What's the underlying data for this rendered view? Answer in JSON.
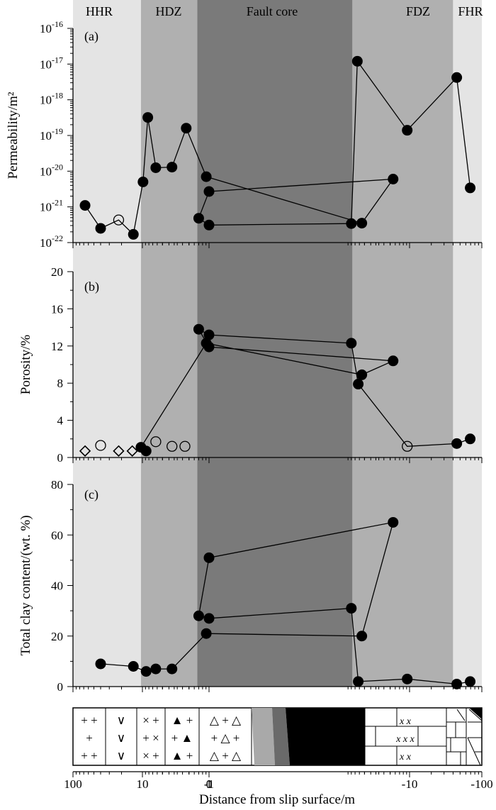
{
  "zones": [
    {
      "name": "HHR",
      "from": 100,
      "to": 10.5,
      "color": "#e4e4e4"
    },
    {
      "name": "HDZ",
      "from": 10.5,
      "to": 1.5,
      "color": "#b0b0b0"
    },
    {
      "name": "Fault core",
      "from": 1.5,
      "to": -1.3,
      "color": "#7a7a7a"
    },
    {
      "name": "FDZ",
      "from": -1.3,
      "to": -40,
      "color": "#b0b0b0"
    },
    {
      "name": "FHR",
      "from": -40,
      "to": -100,
      "color": "#e4e4e4"
    }
  ],
  "chart_data": [
    {
      "type": "scatter",
      "panel": "(a)",
      "ylabel": "Permeability/m²",
      "yscale": "log",
      "ylim": [
        -22,
        -16
      ],
      "ytick_labels": [
        {
          "base": "10",
          "exp": "-16"
        },
        {
          "base": "10",
          "exp": "-17"
        },
        {
          "base": "10",
          "exp": "-18"
        },
        {
          "base": "10",
          "exp": "-19"
        },
        {
          "base": "10",
          "exp": "-20"
        },
        {
          "base": "10",
          "exp": "-21"
        },
        {
          "base": "10",
          "exp": "-22"
        }
      ],
      "series": [
        {
          "name": "filled",
          "connected": true,
          "points": [
            {
              "x": 67,
              "y": 1.1e-21
            },
            {
              "x": 40,
              "y": 2.5e-22
            },
            {
              "x": 22,
              "y": 4.3e-22,
              "open": true
            },
            {
              "x": 13.5,
              "y": 1.7e-22
            },
            {
              "x": 9.8,
              "y": 5e-21
            },
            {
              "x": 8.3,
              "y": 3.2e-19
            },
            {
              "x": 6.3,
              "y": 1.25e-20
            },
            {
              "x": 3.6,
              "y": 1.3e-20
            },
            {
              "x": 2.2,
              "y": 1.6e-19
            },
            {
              "x": 1.1,
              "y": 7e-21
            },
            {
              "x": 0.55,
              "y": 3.5e-22
            },
            {
              "x": 0.18,
              "y": 6e-21
            },
            {
              "x": 0.0,
              "y": 2.7e-21
            },
            {
              "x": -0.7,
              "y": 4.8e-22
            },
            {
              "x": -1.0,
              "y": 3.1e-22
            },
            {
              "x": -1.25,
              "y": 3.4e-22
            },
            {
              "x": -1.55,
              "y": 1.2e-17
            },
            {
              "x": -9.2,
              "y": 1.4e-19
            },
            {
              "x": -45,
              "y": 4.2e-18
            },
            {
              "x": -69,
              "y": 3.4e-21
            }
          ]
        }
      ]
    },
    {
      "type": "scatter",
      "panel": "(b)",
      "ylabel": "Porosity/%",
      "ylim": [
        0,
        20
      ],
      "yticks": [
        0,
        4,
        8,
        12,
        16,
        20
      ],
      "series": [
        {
          "name": "filled",
          "connected": true,
          "points": [
            {
              "x": 10.5,
              "y": 1.1
            },
            {
              "x": 1.1,
              "y": 12.3
            },
            {
              "x": 0.55,
              "y": 8.9
            },
            {
              "x": 0.18,
              "y": 10.4
            },
            {
              "x": 0.0,
              "y": 11.9
            },
            {
              "x": -0.7,
              "y": 13.8
            },
            {
              "x": -1.0,
              "y": 13.2
            },
            {
              "x": -1.25,
              "y": 12.3
            },
            {
              "x": -1.6,
              "y": 7.9
            },
            {
              "x": -9.2,
              "y": 1.2,
              "open": true
            },
            {
              "x": -45,
              "y": 1.5
            },
            {
              "x": -69,
              "y": 2.0
            }
          ]
        },
        {
          "name": "open circles",
          "connected": false,
          "points": [
            {
              "x": 40,
              "y": 1.3
            },
            {
              "x": 6.3,
              "y": 1.7
            },
            {
              "x": 3.6,
              "y": 1.2
            },
            {
              "x": 2.3,
              "y": 1.2
            }
          ]
        },
        {
          "name": "open diamonds",
          "connected": false,
          "points": [
            {
              "x": 67,
              "y": 0.7
            },
            {
              "x": 22,
              "y": 0.7
            },
            {
              "x": 14,
              "y": 0.7
            }
          ]
        },
        {
          "name": "filled extra",
          "connected": false,
          "points": [
            {
              "x": 8.8,
              "y": 0.7
            }
          ]
        }
      ]
    },
    {
      "type": "line",
      "panel": "(c)",
      "ylabel": "Total clay content/(wt. %)",
      "ylim": [
        0,
        80
      ],
      "yticks": [
        0,
        20,
        40,
        60,
        80
      ],
      "series": [
        {
          "name": "filled",
          "connected": true,
          "points": [
            {
              "x": 40,
              "y": 9
            },
            {
              "x": 13.5,
              "y": 8
            },
            {
              "x": 8.8,
              "y": 6
            },
            {
              "x": 6.3,
              "y": 7
            },
            {
              "x": 3.6,
              "y": 7
            },
            {
              "x": 1.1,
              "y": 21
            },
            {
              "x": 0.55,
              "y": 20
            },
            {
              "x": 0.18,
              "y": 65
            },
            {
              "x": 0.0,
              "y": 51
            },
            {
              "x": -0.7,
              "y": 28
            },
            {
              "x": -1.0,
              "y": 27
            },
            {
              "x": -1.25,
              "y": 31
            },
            {
              "x": -1.6,
              "y": 2
            },
            {
              "x": -9.2,
              "y": 3
            },
            {
              "x": -45,
              "y": 1
            },
            {
              "x": -69,
              "y": 2
            }
          ]
        }
      ]
    }
  ],
  "xaxis": {
    "label": "Distance from slip surface/m",
    "ticks": [
      {
        "value": 100,
        "label": "100"
      },
      {
        "value": 10,
        "label": "10"
      },
      {
        "value": 1,
        "label": "1"
      },
      {
        "value": 0,
        "label": "0"
      },
      {
        "value": -1,
        "label": "-1"
      },
      {
        "value": -10,
        "label": "-10"
      },
      {
        "value": -100,
        "label": "-100"
      }
    ]
  },
  "lithology": {
    "blocks": [
      {
        "rows": [
          "+   +",
          "  +  ",
          "+   +"
        ]
      },
      {
        "rows": [
          "∨",
          "∨",
          "∨"
        ]
      },
      {
        "rows": [
          "×  +",
          "+  ×",
          "×  +"
        ]
      },
      {
        "rows": [
          "▲  +",
          "+  ▲",
          "▲  +"
        ]
      },
      {
        "rows": [
          "△   +   △",
          "+   △   +",
          "△   +   △"
        ]
      },
      {
        "rows": [
          "x        x",
          "x      x      x",
          "x        x"
        ]
      }
    ]
  }
}
